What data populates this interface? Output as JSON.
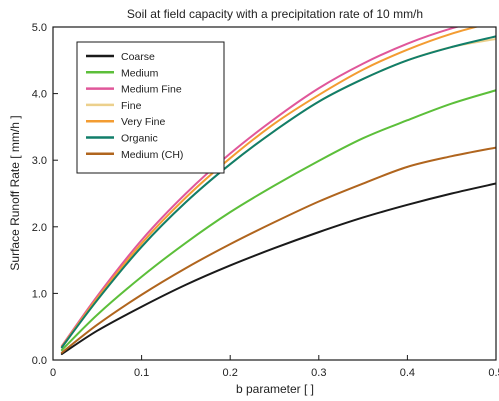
{
  "chart_data": {
    "type": "line",
    "title": "Soil at field capacity with a precipitation rate of 10 mm/h",
    "xlabel": "b parameter [  ]",
    "ylabel": "Surface Runoff Rate [ mm/h ]",
    "xlim": [
      0,
      0.5
    ],
    "ylim": [
      0,
      5
    ],
    "xticks": [
      0,
      0.1,
      0.2,
      0.3,
      0.4,
      0.5
    ],
    "xtick_labels": [
      "0",
      "0.1",
      "0.2",
      "0.3",
      "0.4",
      "0.5"
    ],
    "yticks": [
      0,
      1,
      2,
      3,
      4,
      5
    ],
    "ytick_labels": [
      "0.0",
      "1.0",
      "2.0",
      "3.0",
      "4.0",
      "5.0"
    ],
    "grid": false,
    "legend_position": "top-left",
    "x": [
      0.01,
      0.05,
      0.1,
      0.15,
      0.2,
      0.25,
      0.3,
      0.35,
      0.4,
      0.45,
      0.5
    ],
    "series": [
      {
        "name": "Coarse",
        "color": "#1a1a1a",
        "values": [
          0.09,
          0.44,
          0.8,
          1.13,
          1.42,
          1.68,
          1.92,
          2.14,
          2.33,
          2.5,
          2.65
        ]
      },
      {
        "name": "Medium",
        "color": "#5cbf3a",
        "values": [
          0.15,
          0.68,
          1.25,
          1.76,
          2.22,
          2.62,
          2.99,
          3.33,
          3.6,
          3.85,
          4.05
        ]
      },
      {
        "name": "Medium Fine",
        "color": "#e0579a",
        "values": [
          0.21,
          0.96,
          1.8,
          2.5,
          3.1,
          3.62,
          4.08,
          4.45,
          4.75,
          4.98,
          5.15
        ]
      },
      {
        "name": "Fine",
        "color": "#ecd08c",
        "values": [
          0.19,
          0.9,
          1.7,
          2.37,
          2.94,
          3.44,
          3.88,
          4.22,
          4.5,
          4.7,
          4.82
        ]
      },
      {
        "name": "Very Fine",
        "color": "#f39c32",
        "values": [
          0.2,
          0.93,
          1.75,
          2.44,
          3.03,
          3.55,
          3.98,
          4.36,
          4.66,
          4.9,
          5.08
        ]
      },
      {
        "name": "Organic",
        "color": "#117e6a",
        "values": [
          0.19,
          0.9,
          1.7,
          2.37,
          2.94,
          3.44,
          3.88,
          4.22,
          4.5,
          4.7,
          4.86
        ]
      },
      {
        "name": "Medium (CH)",
        "color": "#b0651e",
        "values": [
          0.11,
          0.53,
          0.98,
          1.38,
          1.74,
          2.07,
          2.38,
          2.65,
          2.9,
          3.06,
          3.19
        ]
      }
    ]
  }
}
